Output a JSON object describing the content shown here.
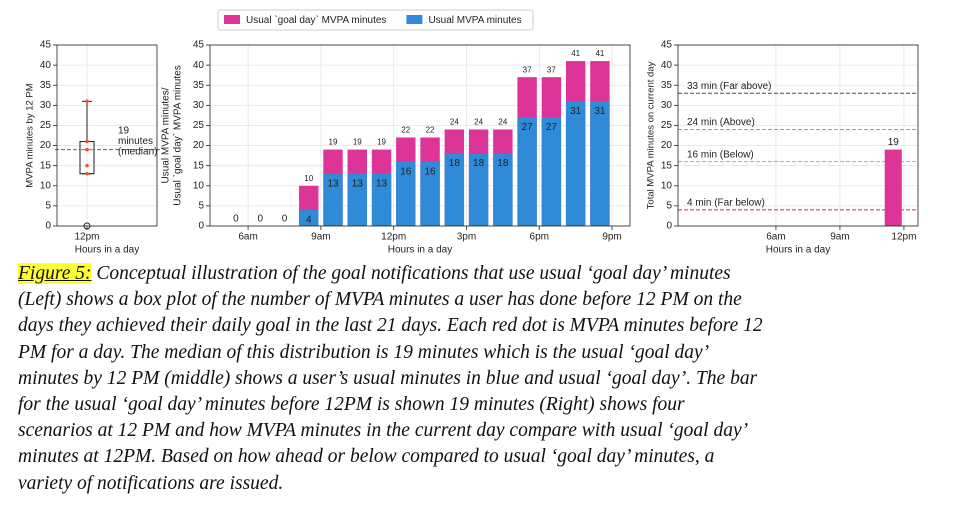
{
  "chart_data": [
    {
      "type": "box",
      "ylabel": "MVPA minutes by 12 PM",
      "xlabel": "Hours in a day",
      "categories": [
        "12pm"
      ],
      "box": {
        "min": 13,
        "q1": 13,
        "median": 19,
        "q3": 21,
        "max": 31,
        "outliers": [
          0
        ]
      },
      "points": [
        13,
        15,
        19,
        21,
        31
      ],
      "point_color": "#e8553a",
      "median_line_color": "#6a4fc0",
      "annotation": [
        "19",
        "minutes",
        "(median)"
      ],
      "ylim": [
        0,
        45
      ],
      "yticks": [
        0,
        5,
        10,
        15,
        20,
        25,
        30,
        35,
        40,
        45
      ],
      "grid": true
    },
    {
      "type": "bar",
      "ylabel": [
        "Usual MVPA minutes/",
        "Usual `goal day` MVPA minutes"
      ],
      "xlabel": "Hours in a day",
      "x": [
        5,
        6,
        7,
        8,
        9,
        10,
        11,
        12,
        13,
        14,
        15,
        16,
        17,
        18,
        19,
        20
      ],
      "series": [
        {
          "name": "Usual `goal day` MVPA minutes",
          "color": "#dd3497",
          "values": [
            0,
            0,
            0,
            10,
            19,
            19,
            19,
            22,
            22,
            24,
            24,
            24,
            37,
            37,
            41,
            41
          ]
        },
        {
          "name": "Usual MVPA minutes",
          "color": "#2f8ad8",
          "values": [
            0,
            0,
            0,
            4,
            13,
            13,
            13,
            16,
            16,
            18,
            18,
            18,
            27,
            27,
            31,
            31
          ]
        }
      ],
      "overlap": true,
      "xlim": [
        4.43,
        21.74
      ],
      "xticks": [
        {
          "value": 6,
          "label": "6am"
        },
        {
          "value": 9,
          "label": "9am"
        },
        {
          "value": 12,
          "label": "12pm"
        },
        {
          "value": 15,
          "label": "3pm"
        },
        {
          "value": 18,
          "label": "6pm"
        },
        {
          "value": 21,
          "label": "9pm"
        }
      ],
      "ylim": [
        0,
        45
      ],
      "yticks": [
        0,
        5,
        10,
        15,
        20,
        25,
        30,
        35,
        40,
        45
      ],
      "grid": true,
      "legend": "top"
    },
    {
      "type": "bar",
      "ylabel": "Total MVPA minutes on current day",
      "xlabel": "Hours in a day",
      "x": [
        11
      ],
      "series": [
        {
          "color": "#dd3497",
          "values": [
            19
          ]
        }
      ],
      "hlines": [
        {
          "value": 33,
          "label": "33 min (Far above)",
          "color": "#1f6e1f"
        },
        {
          "value": 24,
          "label": "24 min (Above)",
          "color": "#45c2a8"
        },
        {
          "value": 16,
          "label": "16 min (Below)",
          "color": "#ef9a4a"
        },
        {
          "value": 4,
          "label": "4 min (Far below)",
          "color": "#c2304c"
        }
      ],
      "xlim": [
        1.41,
        12.66
      ],
      "xticks": [
        {
          "value": 6,
          "label": "6am"
        },
        {
          "value": 9,
          "label": "9am"
        },
        {
          "value": 12,
          "label": "12pm"
        }
      ],
      "ylim": [
        0,
        45
      ],
      "yticks": [
        0,
        5,
        10,
        15,
        20,
        25,
        30,
        35,
        40,
        45
      ],
      "grid": true
    }
  ],
  "caption": {
    "label": "Figure 5:",
    "lines": [
      "Conceptual illustration of the goal notifications that use usual ‘goal day’ minutes",
      "(Left) shows a box plot of the number of MVPA minutes a user has done before 12 PM on the",
      "days they achieved their daily goal in the last 21 days. Each red dot is MVPA minutes before 12",
      "PM for a day. The median of this distribution is 19 minutes which is the usual ‘goal day’",
      "minutes by 12 PM (middle) shows a user’s usual minutes in blue and usual ‘goal day’. The bar",
      "for the usual ‘goal day’ minutes before 12PM is shown 19 minutes (Right) shows four",
      "scenarios at 12 PM and how MVPA minutes in the current day compare with usual ‘goal day’",
      "minutes at 12PM. Based on how ahead or below compared to usual ‘goal day’ minutes, a",
      "variety of notifications are issued."
    ]
  }
}
